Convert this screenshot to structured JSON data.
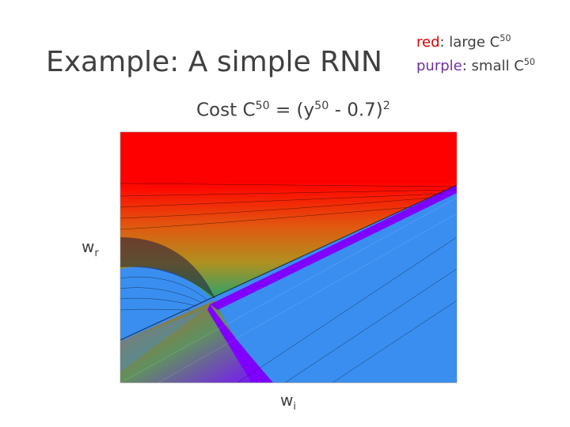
{
  "title": "Example: A simple RNN",
  "legend": [
    {
      "keyword": "red",
      "text": ": large C",
      "sup": "50"
    },
    {
      "keyword": "purple",
      "text": ": small C",
      "sup": "50"
    }
  ],
  "cost": {
    "parts": [
      "Cost C",
      "50",
      " = (y",
      "50",
      " - 0.7)",
      "2"
    ]
  },
  "axes": {
    "y_label": {
      "main": "w",
      "sub": "r"
    },
    "x_label": {
      "main": "w",
      "sub": "i"
    }
  }
}
